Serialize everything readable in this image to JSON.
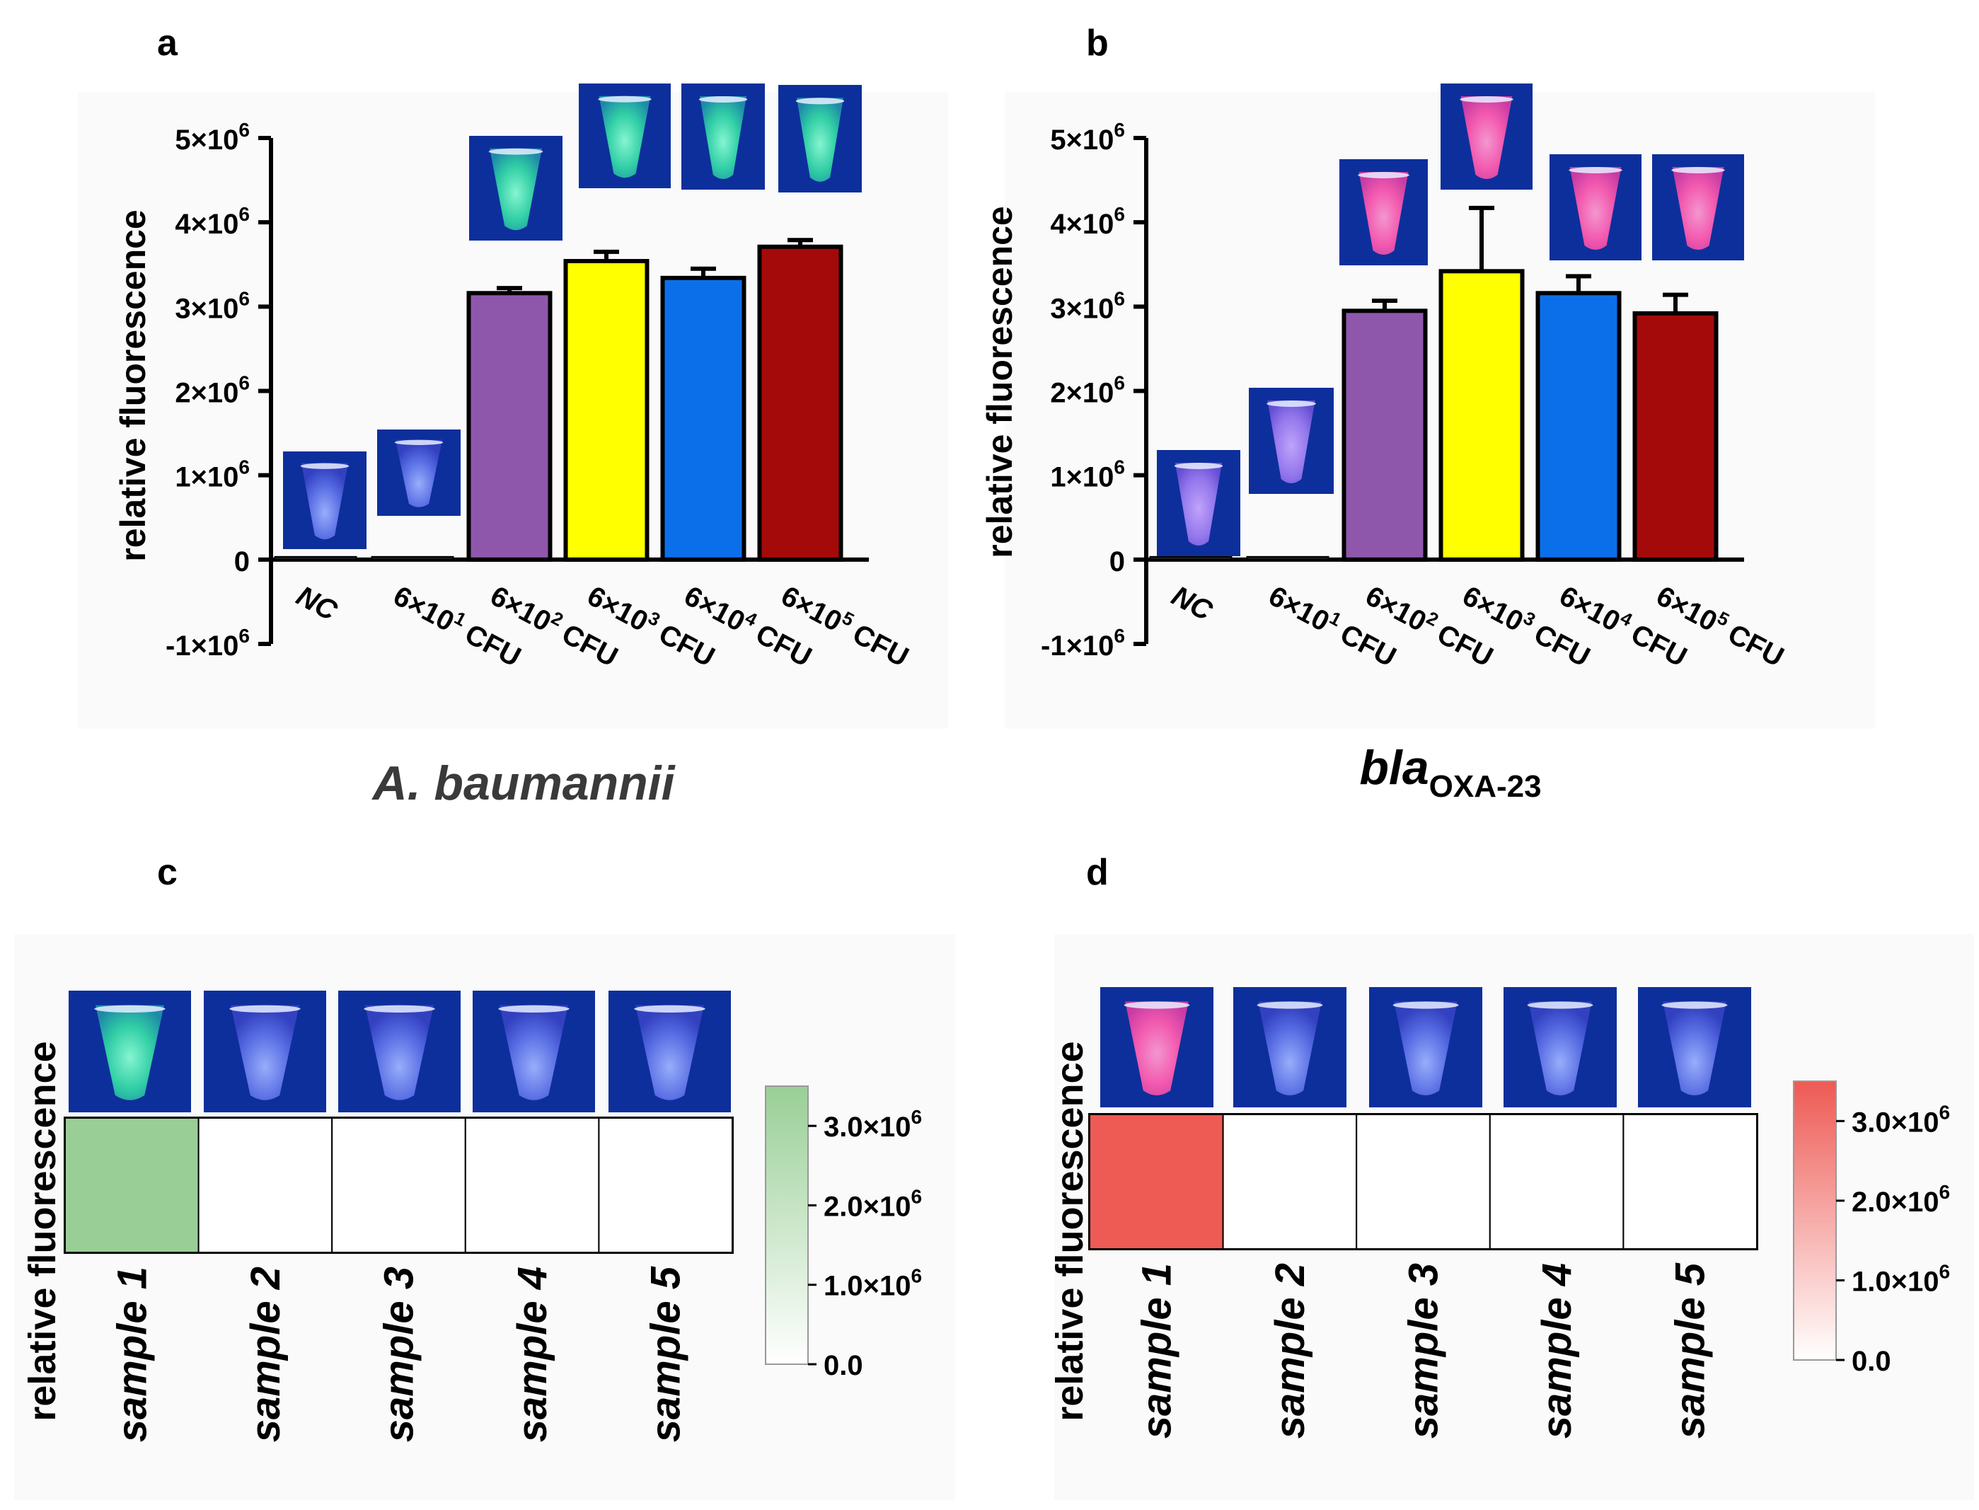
{
  "colors": {
    "nc": "#202020",
    "low": "#202020",
    "purple": "#8F57AC",
    "yellow": "#FFFF00",
    "blue": "#0C6FEA",
    "red": "#A50A0A",
    "heat_green": "#99CF96",
    "heat_red": "#EE5A54",
    "tube_bg": "#0D2F9C"
  },
  "chart_data": [
    {
      "id": "a",
      "panel_label": "a",
      "type": "bar",
      "title": "",
      "caption": "A. baumannii",
      "ylabel": "relative fluorescence",
      "xlabel": "",
      "ylim": [
        -1000000,
        5000000
      ],
      "yticks": [
        {
          "value": 5000000,
          "base": "5×10",
          "exp": "6"
        },
        {
          "value": 4000000,
          "base": "4×10",
          "exp": "6"
        },
        {
          "value": 3000000,
          "base": "3×10",
          "exp": "6"
        },
        {
          "value": 2000000,
          "base": "2×10",
          "exp": "6"
        },
        {
          "value": 1000000,
          "base": "1×10",
          "exp": "6"
        },
        {
          "value": 0,
          "base": "0",
          "exp": ""
        },
        {
          "value": -1000000,
          "base": "-1×10",
          "exp": "6"
        }
      ],
      "categories": [
        {
          "base": "NC",
          "exp": "",
          "unit": ""
        },
        {
          "base": "6×10",
          "exp": "1",
          "unit": "CFU"
        },
        {
          "base": "6×10",
          "exp": "2",
          "unit": "CFU"
        },
        {
          "base": "6×10",
          "exp": "3",
          "unit": "CFU"
        },
        {
          "base": "6×10",
          "exp": "4",
          "unit": "CFU"
        },
        {
          "base": "6×10",
          "exp": "5",
          "unit": "CFU"
        }
      ],
      "values": [
        30000,
        20000,
        3160000,
        3540000,
        3340000,
        3710000
      ],
      "errors": [
        0,
        0,
        60000,
        110000,
        110000,
        80000
      ],
      "bar_colors": [
        "nc",
        "low",
        "purple",
        "yellow",
        "blue",
        "red"
      ],
      "tube_fluid": [
        "blue",
        "blue",
        "green",
        "green",
        "green",
        "green"
      ]
    },
    {
      "id": "b",
      "panel_label": "b",
      "type": "bar",
      "title": "",
      "caption_main": "bla",
      "caption_sub": "OXA-23",
      "ylabel": "relative fluorescence",
      "xlabel": "",
      "ylim": [
        -1000000,
        5000000
      ],
      "yticks": [
        {
          "value": 5000000,
          "base": "5×10",
          "exp": "6"
        },
        {
          "value": 4000000,
          "base": "4×10",
          "exp": "6"
        },
        {
          "value": 3000000,
          "base": "3×10",
          "exp": "6"
        },
        {
          "value": 2000000,
          "base": "2×10",
          "exp": "6"
        },
        {
          "value": 1000000,
          "base": "1×10",
          "exp": "6"
        },
        {
          "value": 0,
          "base": "0",
          "exp": ""
        },
        {
          "value": -1000000,
          "base": "-1×10",
          "exp": "6"
        }
      ],
      "categories": [
        {
          "base": "NC",
          "exp": "",
          "unit": ""
        },
        {
          "base": "6×10",
          "exp": "1",
          "unit": "CFU"
        },
        {
          "base": "6×10",
          "exp": "2",
          "unit": "CFU"
        },
        {
          "base": "6×10",
          "exp": "3",
          "unit": "CFU"
        },
        {
          "base": "6×10",
          "exp": "4",
          "unit": "CFU"
        },
        {
          "base": "6×10",
          "exp": "5",
          "unit": "CFU"
        }
      ],
      "values": [
        0,
        0,
        2950000,
        3420000,
        3160000,
        2920000
      ],
      "errors": [
        0,
        0,
        120000,
        750000,
        200000,
        220000
      ],
      "bar_colors": [
        "nc",
        "low",
        "purple",
        "yellow",
        "blue",
        "red"
      ],
      "tube_fluid": [
        "violet",
        "violet",
        "pink",
        "pink",
        "pink",
        "pink"
      ]
    },
    {
      "id": "c",
      "panel_label": "c",
      "type": "heatmap",
      "title": "",
      "ylabel": "relative fluorescence",
      "categories": [
        "sample 1",
        "sample 2",
        "sample 3",
        "sample 4",
        "sample 5"
      ],
      "values": [
        3500000,
        0,
        0,
        0,
        0
      ],
      "color_range": [
        0,
        3500000
      ],
      "colormap": "heat_green",
      "colorbar_ticks": [
        {
          "value": 3000000,
          "base": "3.0×10",
          "exp": "6"
        },
        {
          "value": 2000000,
          "base": "2.0×10",
          "exp": "6"
        },
        {
          "value": 1000000,
          "base": "1.0×10",
          "exp": "6"
        },
        {
          "value": 0,
          "base": "0.0",
          "exp": ""
        }
      ],
      "tube_fluid": [
        "green",
        "blue",
        "blue",
        "blue",
        "blue"
      ]
    },
    {
      "id": "d",
      "panel_label": "d",
      "type": "heatmap",
      "title": "",
      "ylabel": "relative fluorescence",
      "categories": [
        "sample 1",
        "sample 2",
        "sample 3",
        "sample 4",
        "sample 5"
      ],
      "values": [
        3500000,
        0,
        0,
        0,
        0
      ],
      "color_range": [
        0,
        3500000
      ],
      "colormap": "heat_red",
      "colorbar_ticks": [
        {
          "value": 3000000,
          "base": "3.0×10",
          "exp": "6"
        },
        {
          "value": 2000000,
          "base": "2.0×10",
          "exp": "6"
        },
        {
          "value": 1000000,
          "base": "1.0×10",
          "exp": "6"
        },
        {
          "value": 0,
          "base": "0.0",
          "exp": ""
        }
      ],
      "tube_fluid": [
        "pink",
        "blue",
        "blue",
        "blue",
        "blue"
      ]
    }
  ]
}
